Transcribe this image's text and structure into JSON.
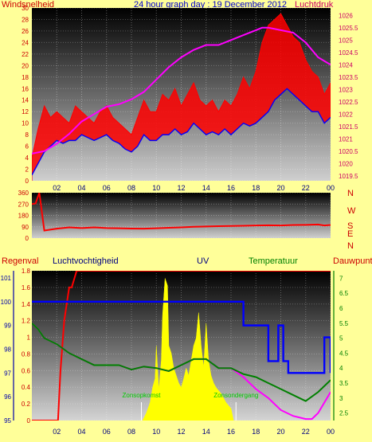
{
  "title": "24 hour graph day : 19 December 2012",
  "colors": {
    "page_bg": "#ffff99",
    "wind": "#ff0000",
    "gust_fill": "#ff0000",
    "avg_wind": "#0000ff",
    "pressure": "#ff00ff",
    "direction": "#ff0000",
    "rain": "#ff0000",
    "humidity": "#0000ff",
    "uv_fill": "#ffff00",
    "temperature": "#008000",
    "dewpoint": "#ff00ff",
    "label_regen": "#cc0000",
    "label_vocht": "#000080",
    "label_uv": "#000080",
    "label_temp": "#008000",
    "label_dauw": "#cc0000",
    "axis_text_left": "#cc0000",
    "axis_text_right": "#cc0066",
    "axis_text_blue": "#0000aa",
    "axis_text_green": "#008000",
    "x_ticks": "#000080"
  },
  "chart_data": [
    {
      "type": "line",
      "panel": "wind-pressure",
      "left_label": "Windsnelheid",
      "right_label": "Luchtdruk",
      "y_left_ticks": [
        "0",
        "2",
        "4",
        "6",
        "8",
        "10",
        "12",
        "14",
        "16",
        "18",
        "20",
        "22",
        "24",
        "26",
        "28",
        "30"
      ],
      "y_left_range": [
        0,
        30
      ],
      "y_right_ticks": [
        "1019.5",
        "1020",
        "1020.5",
        "1021",
        "1021.5",
        "1022",
        "1022.5",
        "1023",
        "1023.5",
        "1024",
        "1024.5",
        "1025",
        "1025.5",
        "1026"
      ],
      "y_right_range": [
        1019.3,
        1026.3
      ],
      "x_ticks": [
        "02",
        "04",
        "06",
        "08",
        "10",
        "12",
        "14",
        "16",
        "18",
        "20",
        "22",
        "00"
      ],
      "x_range": [
        0,
        24
      ],
      "series": [
        {
          "key": "avg_wind",
          "x": [
            0,
            0.5,
            1,
            1.5,
            2,
            2.5,
            3,
            3.5,
            4,
            4.5,
            5,
            5.5,
            6,
            6.5,
            7,
            7.5,
            8,
            8.5,
            9,
            9.5,
            10,
            10.5,
            11,
            11.5,
            12,
            12.5,
            13,
            13.5,
            14,
            14.5,
            15,
            15.5,
            16,
            16.5,
            17,
            17.5,
            18,
            18.5,
            19,
            19.5,
            20,
            20.5,
            21,
            21.5,
            22,
            22.5,
            23,
            23.5,
            24
          ],
          "values": [
            1,
            3,
            5,
            6,
            7,
            6.5,
            7,
            7,
            8,
            7.5,
            7,
            7.5,
            8,
            7,
            6.5,
            5.5,
            5,
            6,
            8,
            7,
            7,
            8,
            8,
            9,
            8,
            8.5,
            10,
            9,
            8,
            8.5,
            8,
            9,
            8,
            9,
            10,
            9.5,
            10,
            11,
            12,
            14,
            15,
            16,
            15,
            14,
            13,
            12,
            12,
            10,
            11
          ]
        },
        {
          "key": "gust",
          "x": [
            0,
            0.5,
            1,
            1.5,
            2,
            2.5,
            3,
            3.5,
            4,
            4.5,
            5,
            5.5,
            6,
            6.5,
            7,
            7.5,
            8,
            8.5,
            9,
            9.5,
            10,
            10.5,
            11,
            11.5,
            12,
            12.5,
            13,
            13.5,
            14,
            14.5,
            15,
            15.5,
            16,
            16.5,
            17,
            17.5,
            18,
            18.5,
            19,
            19.5,
            20,
            20.5,
            21,
            21.5,
            22,
            22.5,
            23,
            23.5,
            24
          ],
          "values": [
            4,
            9,
            13,
            11,
            12,
            11,
            10,
            13,
            12,
            11,
            10,
            12,
            13,
            11,
            10,
            9,
            8,
            11,
            14,
            12,
            12,
            15,
            14,
            16,
            13,
            15,
            17,
            14,
            13,
            14,
            12,
            14,
            13,
            15,
            18,
            16,
            19,
            24,
            27,
            28,
            29,
            27,
            25,
            24,
            21,
            19,
            18,
            15,
            17
          ]
        },
        {
          "key": "pressure",
          "x": [
            0,
            1,
            2,
            3,
            4,
            5,
            6,
            7,
            8,
            9,
            10,
            11,
            12,
            13,
            14,
            15,
            16,
            17,
            18,
            18.5,
            19,
            20,
            21,
            22,
            23,
            24
          ],
          "values": [
            1020.4,
            1020.5,
            1020.8,
            1021.2,
            1021.7,
            1022.0,
            1022.3,
            1022.4,
            1022.6,
            1022.9,
            1023.4,
            1023.9,
            1024.3,
            1024.6,
            1024.8,
            1024.8,
            1025.0,
            1025.2,
            1025.4,
            1025.5,
            1025.5,
            1025.4,
            1025.3,
            1024.9,
            1024.3,
            1024.0
          ]
        }
      ]
    },
    {
      "type": "line",
      "panel": "wind-direction",
      "y_left_ticks": [
        "0",
        "90",
        "180",
        "270",
        "360"
      ],
      "y_left_range": [
        0,
        360
      ],
      "right_compass": [
        "N",
        "W",
        "S",
        "E",
        "N"
      ],
      "x_range": [
        0,
        24
      ],
      "series": [
        {
          "key": "direction",
          "x": [
            0,
            0.3,
            0.6,
            1,
            2,
            3,
            4,
            5,
            6,
            7,
            8,
            9,
            10,
            11,
            12,
            13,
            14,
            15,
            16,
            17,
            18,
            19,
            20,
            21,
            22,
            23,
            23.5,
            24
          ],
          "values": [
            270,
            275,
            360,
            60,
            75,
            85,
            80,
            85,
            80,
            78,
            76,
            75,
            78,
            82,
            85,
            90,
            92,
            95,
            96,
            98,
            100,
            102,
            100,
            104,
            105,
            108,
            100,
            104
          ]
        }
      ]
    },
    {
      "type": "line",
      "panel": "rain-humidity-uv-temp",
      "labels": {
        "regen": "Regenval",
        "vocht": "Luchtvochtigheid",
        "uv": "UV",
        "temp": "Temperatuur",
        "dauw": "Dauwpunt"
      },
      "rain_ticks": [
        "0",
        "0.2",
        "0.4",
        "0.6",
        "0.8",
        "1",
        "1.2",
        "1.4",
        "1.6",
        "1.8"
      ],
      "rain_range": [
        0,
        1.8
      ],
      "humidity_ticks": [
        "95",
        "96",
        "97",
        "98",
        "99",
        "100",
        "101"
      ],
      "humidity_range": [
        95,
        101.3
      ],
      "temp_ticks": [
        "2.5",
        "3",
        "3.5",
        "4",
        "4.5",
        "5",
        "5.5",
        "6",
        "6.5",
        "7"
      ],
      "temp_range": [
        2.25,
        7.25
      ],
      "x_ticks": [
        "02",
        "04",
        "06",
        "08",
        "10",
        "12",
        "14",
        "16",
        "18",
        "20",
        "22",
        "00"
      ],
      "x_range": [
        0,
        24
      ],
      "annotations": [
        "Zonsopkomst",
        "Zonsondergang"
      ],
      "annotation_x": [
        8.8,
        16.4
      ],
      "series": [
        {
          "key": "rain",
          "x": [
            0,
            2.1,
            2.3,
            2.6,
            3,
            3.2,
            3.6,
            24
          ],
          "values": [
            0,
            0,
            0.6,
            1.2,
            1.6,
            1.6,
            1.8,
            1.8
          ]
        },
        {
          "key": "humidity",
          "x": [
            0,
            16.5,
            17,
            18.7,
            19,
            19.6,
            19.8,
            20.2,
            20.6,
            22,
            23,
            23.5,
            24
          ],
          "values": [
            100,
            100,
            99,
            99,
            97.5,
            97.5,
            99,
            97.5,
            97,
            97,
            97,
            98.5,
            97
          ]
        },
        {
          "key": "temperature",
          "x": [
            0,
            0.5,
            1,
            2,
            3,
            4,
            5,
            6,
            7,
            8,
            9,
            10,
            11,
            12,
            13,
            14,
            15,
            16,
            17,
            18,
            19,
            20,
            21,
            22,
            23,
            24
          ],
          "values": [
            5.5,
            5.3,
            5.0,
            4.8,
            4.5,
            4.3,
            4.1,
            4.1,
            4.1,
            3.95,
            4.05,
            4.0,
            3.9,
            4.1,
            4.3,
            4.3,
            4.0,
            4.0,
            3.8,
            3.7,
            3.5,
            3.3,
            3.1,
            2.9,
            3.2,
            3.6
          ]
        },
        {
          "key": "dewpoint",
          "x": [
            0,
            0.5,
            1,
            2,
            3,
            4,
            5,
            6,
            7,
            8,
            9,
            10,
            11,
            12,
            13,
            14,
            15,
            16,
            17,
            18,
            19,
            20,
            21,
            22,
            22.5,
            23,
            24
          ],
          "values": [
            5.5,
            5.3,
            5.0,
            4.8,
            4.5,
            4.3,
            4.1,
            4.1,
            4.1,
            3.95,
            4.05,
            4.0,
            3.9,
            4.1,
            4.3,
            4.3,
            4.0,
            4.0,
            3.7,
            3.3,
            3.0,
            2.6,
            2.4,
            2.3,
            2.3,
            2.5,
            3.2
          ]
        },
        {
          "key": "uv",
          "x": [
            8.9,
            9.2,
            9.5,
            9.7,
            9.9,
            10.0,
            10.2,
            10.4,
            10.5,
            10.7,
            10.9,
            11.0,
            11.2,
            11.4,
            11.6,
            11.8,
            12.0,
            12.2,
            12.4,
            12.6,
            12.8,
            13.0,
            13.2,
            13.4,
            13.6,
            13.8,
            14.0,
            14.2,
            14.4,
            14.6,
            14.8,
            15.0,
            15.2,
            15.4,
            15.6,
            15.8,
            16.0,
            16.2
          ],
          "values": [
            0,
            0.05,
            0.12,
            0.22,
            0.28,
            0.5,
            0.2,
            0.4,
            0.7,
            0.95,
            0.9,
            0.5,
            0.45,
            0.35,
            0.3,
            0.25,
            0.22,
            0.28,
            0.35,
            0.3,
            0.4,
            0.5,
            0.55,
            0.72,
            0.5,
            0.35,
            0.65,
            0.4,
            0.3,
            0.25,
            0.22,
            0.2,
            0.18,
            0.15,
            0.12,
            0.1,
            0.08,
            0
          ]
        }
      ]
    }
  ]
}
